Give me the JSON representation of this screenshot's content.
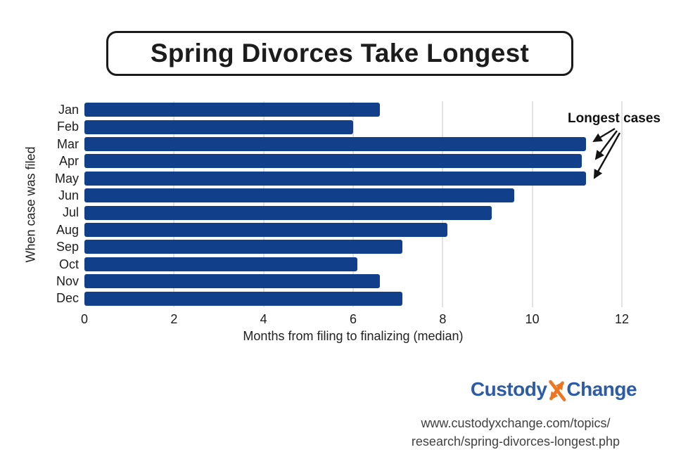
{
  "title": "Spring Divorces Take Longest",
  "chart_data": {
    "type": "bar",
    "orientation": "horizontal",
    "categories": [
      "Jan",
      "Feb",
      "Mar",
      "Apr",
      "May",
      "Jun",
      "Jul",
      "Aug",
      "Sep",
      "Oct",
      "Nov",
      "Dec"
    ],
    "values": [
      6.6,
      6.0,
      11.2,
      11.1,
      11.2,
      9.6,
      9.1,
      8.1,
      7.1,
      6.1,
      6.6,
      7.1
    ],
    "title": "Spring Divorces Take Longest",
    "xlabel": "Months from filing to finalizing (median)",
    "ylabel": "When case was filed",
    "xlim": [
      0,
      12
    ],
    "xticks": [
      0,
      2,
      4,
      6,
      8,
      10,
      12
    ],
    "grid": "vertical-gridlines-on",
    "legend": "none",
    "bar_color": "#123f8a",
    "annotation": {
      "label": "Longest cases",
      "targets": [
        "Mar",
        "Apr",
        "May"
      ]
    }
  },
  "footer": {
    "logo_part1": "Custody",
    "logo_part2": "Change",
    "url_line1": "www.custodyxchange.com/topics/",
    "url_line2": "research/spring-divorces-longest.php"
  },
  "colors": {
    "bar": "#123f8a",
    "gridline": "#e2e2e6",
    "text": "#1d1d1f",
    "logo_blue": "#2d5ba6",
    "logo_orange": "#ee7623",
    "url_text": "#414141"
  }
}
